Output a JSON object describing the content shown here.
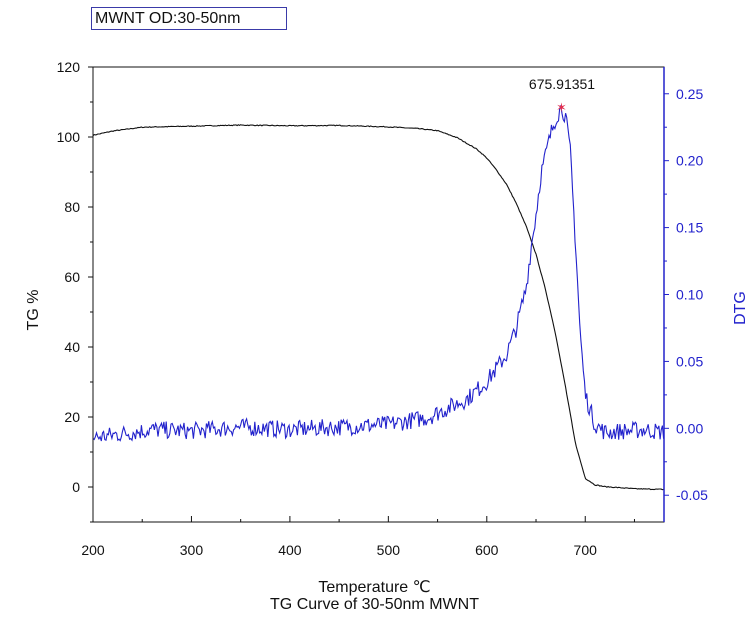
{
  "legend_text": "MWNT OD:30-50nm",
  "peak_label": "675.91351",
  "xlabel": "Temperature ℃",
  "caption": "TG Curve of 30-50nm MWNT",
  "ylabel_left": "TG %",
  "ylabel_right": "DTG",
  "colors": {
    "tg": "#111111",
    "dtg": "#2222cc",
    "right_axis": "#2222cc",
    "peak_marker": "#e03050"
  },
  "chart_data": {
    "type": "line",
    "title": "",
    "xlabel": "Temperature ℃",
    "xlim": [
      200,
      780
    ],
    "x_ticks": [
      200,
      300,
      400,
      500,
      600,
      700
    ],
    "y_left": {
      "label": "TG %",
      "lim": [
        -10,
        120
      ],
      "ticks": [
        0,
        20,
        40,
        60,
        80,
        100,
        120
      ]
    },
    "y_right": {
      "label": "DTG",
      "lim": [
        -0.07,
        0.27
      ],
      "ticks": [
        -0.05,
        0.0,
        0.05,
        0.1,
        0.15,
        0.2,
        0.25
      ],
      "tick_labels": [
        "-0.05",
        "0.00",
        "0.05",
        "0.10",
        "0.15",
        "0.20",
        "0.25"
      ]
    },
    "series": [
      {
        "axis": "left",
        "x": [
          200,
          220,
          250,
          300,
          350,
          400,
          450,
          500,
          530,
          550,
          570,
          590,
          600,
          610,
          620,
          630,
          640,
          650,
          660,
          670,
          680,
          690,
          700,
          710,
          720,
          750,
          780
        ],
        "y": [
          100.5,
          101.7,
          102.8,
          103.1,
          103.4,
          103.2,
          103.3,
          102.9,
          102.4,
          101.8,
          99.8,
          96.5,
          94.0,
          90.5,
          86.5,
          81.0,
          74.5,
          66.5,
          56.0,
          43.5,
          28.5,
          12.5,
          2.5,
          0.6,
          0.1,
          -0.5,
          -0.7
        ]
      },
      {
        "axis": "right",
        "x": [
          200,
          230,
          260,
          300,
          350,
          400,
          450,
          500,
          540,
          560,
          580,
          600,
          620,
          630,
          640,
          645,
          650,
          655,
          660,
          665,
          670,
          675.9,
          680,
          685,
          690,
          695,
          700,
          710,
          720,
          740,
          760,
          780
        ],
        "y": [
          -0.007,
          -0.004,
          -0.001,
          -0.002,
          0.001,
          -0.001,
          0.001,
          0.003,
          0.008,
          0.015,
          0.022,
          0.035,
          0.055,
          0.075,
          0.105,
          0.135,
          0.16,
          0.19,
          0.205,
          0.22,
          0.232,
          0.24,
          0.233,
          0.205,
          0.14,
          0.07,
          0.025,
          0.003,
          -0.003,
          -0.002,
          -0.001,
          -0.003
        ]
      }
    ],
    "annotation": {
      "x": 675.9,
      "y_right": 0.24,
      "text": "675.91351"
    }
  }
}
